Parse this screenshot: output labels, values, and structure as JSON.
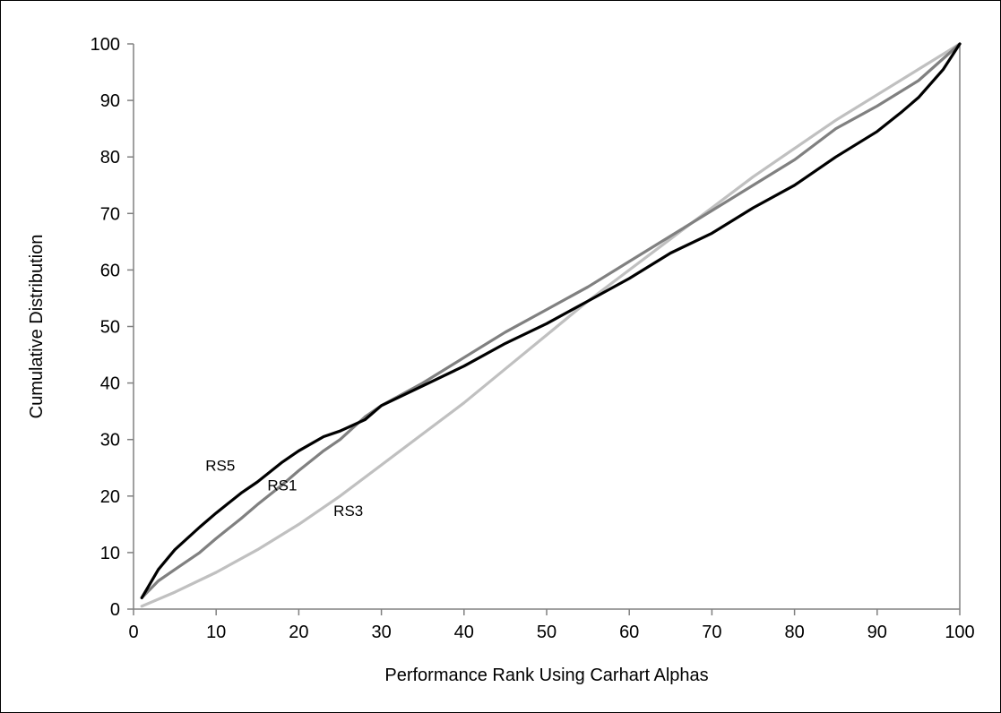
{
  "chart_data": {
    "type": "line",
    "title": "",
    "xlabel": "Performance Rank Using Carhart Alphas",
    "ylabel": "Cumulative Distribution",
    "xlim": [
      0,
      100
    ],
    "ylim": [
      0,
      100
    ],
    "xticks": [
      0,
      10,
      20,
      30,
      40,
      50,
      60,
      70,
      80,
      90,
      100
    ],
    "yticks": [
      0,
      10,
      20,
      30,
      40,
      50,
      60,
      70,
      80,
      90,
      100
    ],
    "grid": false,
    "legend": "none",
    "series": [
      {
        "name": "RS3",
        "color": "#c0c0c0",
        "x": [
          1,
          5,
          10,
          15,
          20,
          25,
          30,
          35,
          40,
          45,
          50,
          55,
          60,
          65,
          70,
          75,
          80,
          85,
          90,
          95,
          100
        ],
        "y": [
          0.5,
          3,
          6.5,
          10.5,
          15,
          20,
          25.5,
          31,
          36.5,
          42.5,
          48.5,
          54.5,
          60,
          65.5,
          71,
          76.5,
          81.5,
          86.5,
          91,
          95.5,
          100
        ]
      },
      {
        "name": "RS1",
        "color": "#808080",
        "x": [
          1,
          3,
          5,
          8,
          10,
          13,
          15,
          18,
          20,
          23,
          25,
          28,
          30,
          35,
          40,
          45,
          50,
          55,
          60,
          65,
          70,
          75,
          80,
          85,
          90,
          95,
          100
        ],
        "y": [
          2,
          5,
          7,
          10,
          12.5,
          16,
          18.5,
          22,
          24.5,
          28,
          30,
          34,
          36,
          40,
          44.5,
          49,
          53,
          57,
          61.5,
          66,
          70.5,
          75,
          79.5,
          85,
          89,
          93.5,
          100
        ]
      },
      {
        "name": "RS5",
        "color": "#000000",
        "x": [
          1,
          3,
          5,
          8,
          10,
          13,
          15,
          18,
          20,
          23,
          25,
          28,
          30,
          35,
          40,
          45,
          50,
          55,
          60,
          65,
          70,
          75,
          80,
          85,
          90,
          93,
          95,
          98,
          100
        ],
        "y": [
          2,
          7,
          10.5,
          14.5,
          17,
          20.5,
          22.5,
          26,
          28,
          30.5,
          31.5,
          33.5,
          36,
          39.5,
          43,
          47,
          50.5,
          54.5,
          58.5,
          63,
          66.5,
          71,
          75,
          80,
          84.5,
          88,
          90.5,
          95.5,
          100
        ]
      }
    ],
    "annotations": [
      {
        "text": "RS5",
        "x": 10.5,
        "y": 24.5
      },
      {
        "text": "RS1",
        "x": 18,
        "y": 21
      },
      {
        "text": "RS3",
        "x": 26,
        "y": 16.5
      }
    ]
  }
}
